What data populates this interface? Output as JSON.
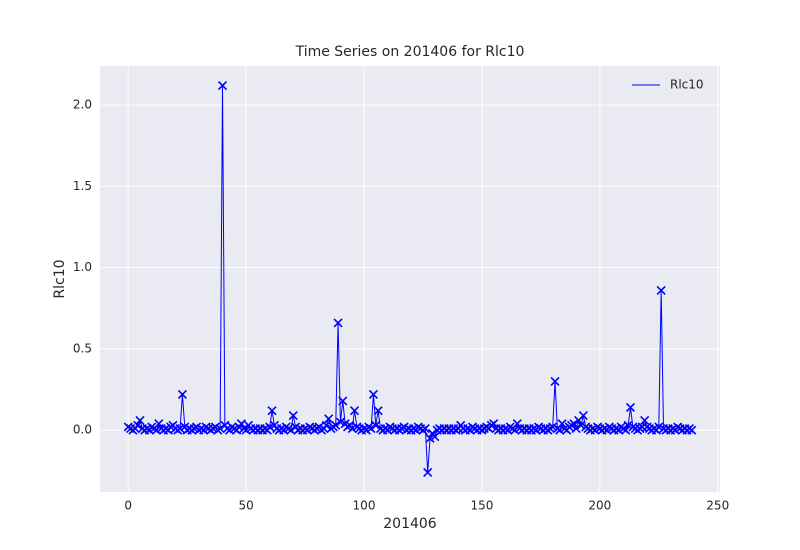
{
  "chart_data": {
    "type": "line",
    "title": "Time Series on 201406 for Rlc10",
    "xlabel": "201406",
    "ylabel": "Rlc10",
    "x": [
      0,
      1,
      2,
      3,
      4,
      5,
      6,
      7,
      8,
      9,
      10,
      11,
      12,
      13,
      14,
      15,
      16,
      17,
      18,
      19,
      20,
      21,
      22,
      23,
      24,
      25,
      26,
      27,
      28,
      29,
      30,
      31,
      32,
      33,
      34,
      35,
      36,
      37,
      38,
      39,
      40,
      41,
      42,
      43,
      44,
      45,
      46,
      47,
      48,
      49,
      50,
      51,
      52,
      53,
      54,
      55,
      56,
      57,
      58,
      59,
      60,
      61,
      62,
      63,
      64,
      65,
      66,
      67,
      68,
      69,
      70,
      71,
      72,
      73,
      74,
      75,
      76,
      77,
      78,
      79,
      80,
      81,
      82,
      83,
      84,
      85,
      86,
      87,
      88,
      89,
      90,
      91,
      92,
      93,
      94,
      95,
      96,
      97,
      98,
      99,
      100,
      101,
      102,
      103,
      104,
      105,
      106,
      107,
      108,
      109,
      110,
      111,
      112,
      113,
      114,
      115,
      116,
      117,
      118,
      119,
      120,
      121,
      122,
      123,
      124,
      125,
      126,
      127,
      128,
      129,
      130,
      131,
      132,
      133,
      134,
      135,
      136,
      137,
      138,
      139,
      140,
      141,
      142,
      143,
      144,
      145,
      146,
      147,
      148,
      149,
      150,
      151,
      152,
      153,
      154,
      155,
      156,
      157,
      158,
      159,
      160,
      161,
      162,
      163,
      164,
      165,
      166,
      167,
      168,
      169,
      170,
      171,
      172,
      173,
      174,
      175,
      176,
      177,
      178,
      179,
      180,
      181,
      182,
      183,
      184,
      185,
      186,
      187,
      188,
      189,
      190,
      191,
      192,
      193,
      194,
      195,
      196,
      197,
      198,
      199,
      200,
      201,
      202,
      203,
      204,
      205,
      206,
      207,
      208,
      209,
      210,
      211,
      212,
      213,
      214,
      215,
      216,
      217,
      218,
      219,
      220,
      221,
      222,
      223,
      224,
      225,
      226,
      227,
      228,
      229,
      230,
      231,
      232,
      233,
      234,
      235,
      236,
      237,
      238,
      239
    ],
    "series": [
      {
        "name": "Rlc10",
        "color": "#0000ff",
        "values": [
          0.02,
          0.01,
          0.0,
          0.01,
          0.03,
          0.06,
          0.01,
          0.0,
          0.01,
          0.0,
          0.02,
          0.01,
          0.0,
          0.04,
          0.01,
          0.0,
          0.01,
          0.0,
          0.02,
          0.03,
          0.01,
          0.0,
          0.01,
          0.22,
          0.02,
          0.0,
          0.01,
          0.0,
          0.01,
          0.02,
          0.0,
          0.01,
          0.0,
          0.02,
          0.01,
          0.0,
          0.01,
          0.02,
          0.0,
          0.01,
          2.12,
          0.03,
          0.01,
          0.0,
          0.02,
          0.01,
          0.0,
          0.02,
          0.04,
          0.01,
          0.0,
          0.03,
          0.01,
          0.0,
          0.01,
          0.0,
          0.01,
          0.0,
          0.01,
          0.0,
          0.02,
          0.12,
          0.03,
          0.01,
          0.0,
          0.01,
          0.0,
          0.02,
          0.01,
          0.0,
          0.09,
          0.02,
          0.0,
          0.01,
          0.0,
          0.01,
          0.0,
          0.02,
          0.01,
          0.0,
          0.01,
          0.02,
          0.0,
          0.01,
          0.03,
          0.07,
          0.01,
          0.02,
          0.03,
          0.66,
          0.05,
          0.18,
          0.04,
          0.02,
          0.03,
          0.01,
          0.12,
          0.02,
          0.01,
          0.0,
          0.01,
          0.0,
          0.02,
          0.01,
          0.22,
          0.03,
          0.12,
          0.01,
          0.0,
          0.01,
          0.0,
          0.02,
          0.01,
          0.0,
          0.01,
          0.0,
          0.01,
          0.02,
          0.0,
          0.01,
          0.0,
          0.01,
          0.0,
          0.02,
          0.01,
          0.0,
          0.01,
          -0.26,
          -0.05,
          -0.02,
          -0.04,
          0.0,
          0.01,
          0.0,
          0.01,
          0.0,
          0.01,
          0.0,
          0.01,
          0.0,
          0.01,
          0.03,
          0.01,
          0.0,
          0.01,
          0.0,
          0.02,
          0.01,
          0.0,
          0.01,
          0.0,
          0.01,
          0.02,
          0.01,
          0.03,
          0.04,
          0.01,
          0.0,
          0.01,
          0.0,
          0.01,
          0.0,
          0.02,
          0.01,
          0.0,
          0.04,
          0.01,
          0.0,
          0.01,
          0.0,
          0.01,
          0.0,
          0.01,
          0.0,
          0.02,
          0.01,
          0.0,
          0.01,
          0.0,
          0.01,
          0.02,
          0.3,
          0.01,
          0.0,
          0.04,
          0.01,
          0.0,
          0.02,
          0.03,
          0.04,
          0.01,
          0.06,
          0.03,
          0.09,
          0.02,
          0.01,
          0.0,
          0.01,
          0.0,
          0.02,
          0.01,
          0.0,
          0.01,
          0.0,
          0.02,
          0.01,
          0.0,
          0.01,
          0.0,
          0.02,
          0.01,
          0.0,
          0.03,
          0.14,
          0.02,
          0.01,
          0.0,
          0.01,
          0.02,
          0.06,
          0.02,
          0.01,
          0.0,
          0.01,
          0.0,
          0.02,
          0.86,
          0.01,
          0.0,
          0.01,
          0.0,
          0.01,
          0.0,
          0.02,
          0.01,
          0.0,
          0.01,
          0.0,
          0.01,
          0.0
        ]
      }
    ],
    "xlim": [
      -11.95,
      250.95
    ],
    "xticks": [
      0,
      50,
      100,
      150,
      200,
      250
    ],
    "ylim": [
      -0.38,
      2.24
    ],
    "yticks": [
      {
        "value": 0,
        "label": "0.0"
      },
      0.5,
      {
        "value": 1,
        "label": "1.0"
      },
      1.5,
      {
        "value": 2,
        "label": "2.0"
      }
    ],
    "grid": true,
    "legend": "upper right",
    "marker": "x"
  }
}
